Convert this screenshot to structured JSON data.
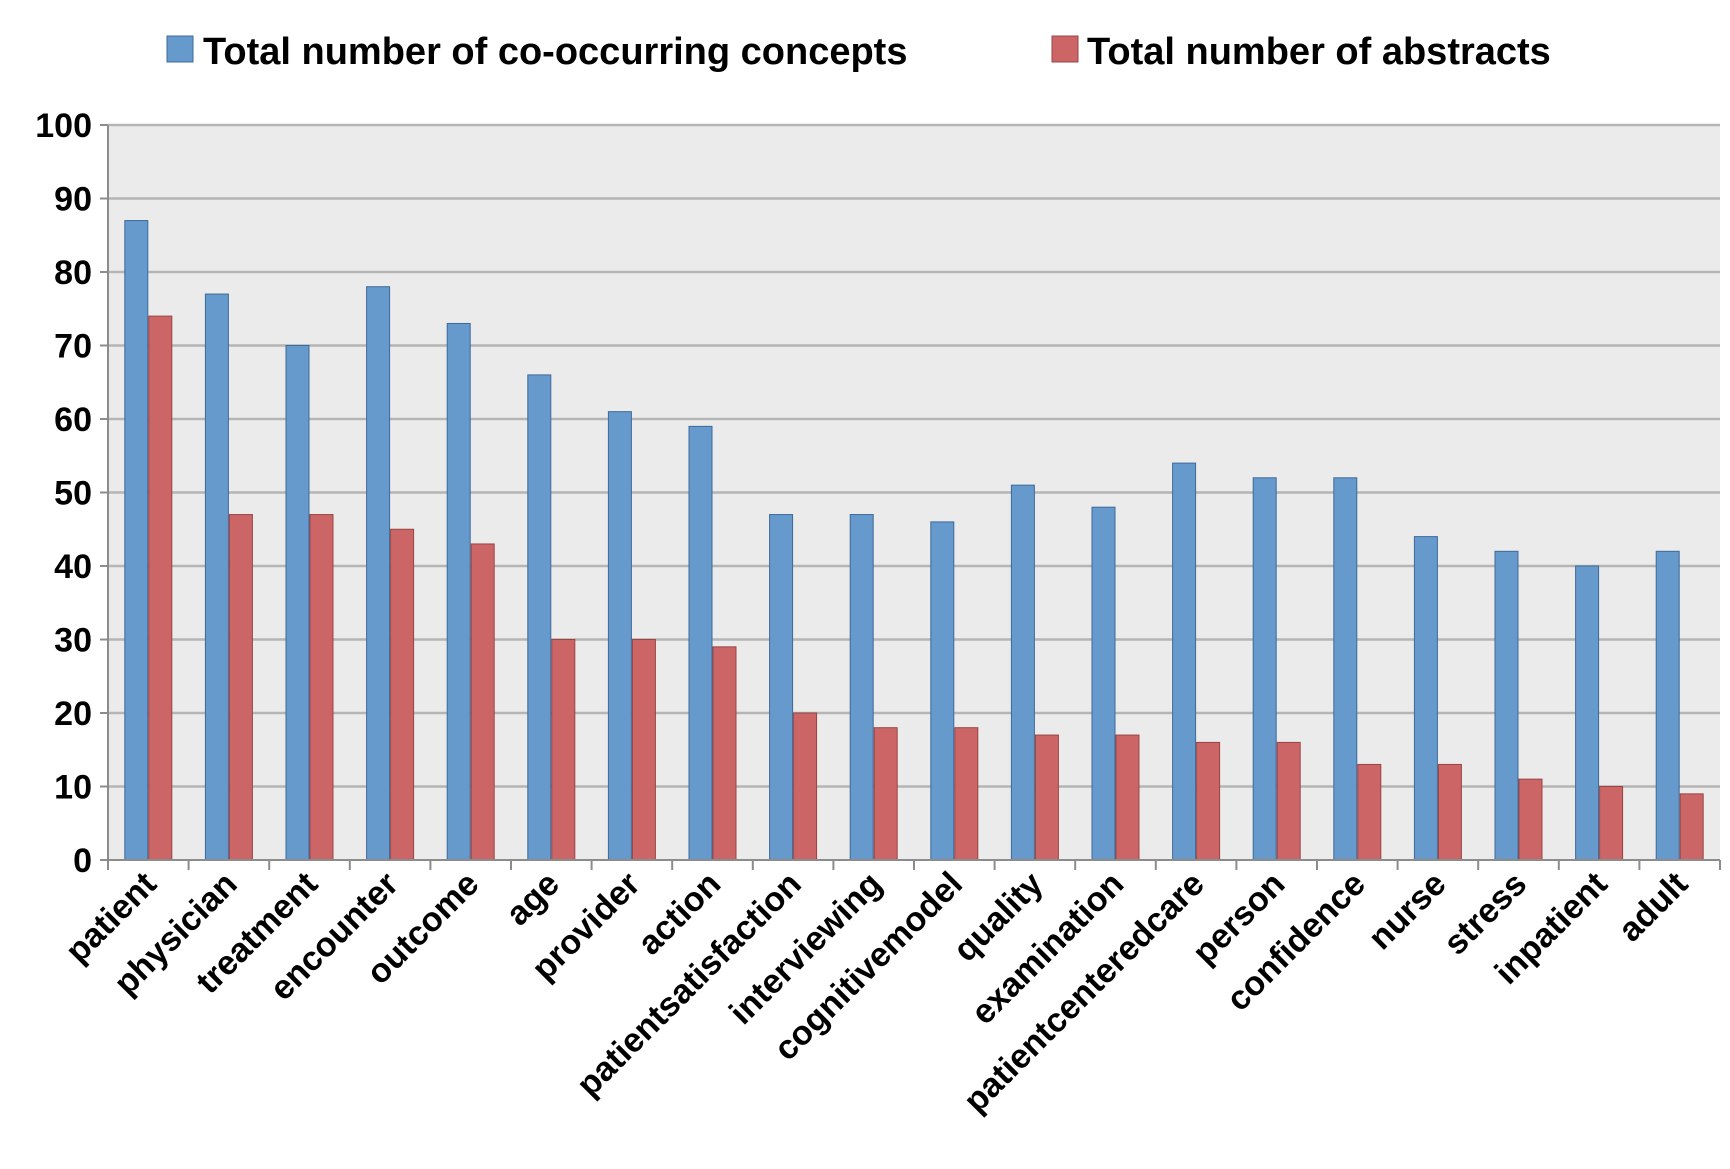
{
  "chart_data": {
    "type": "bar",
    "categories": [
      "patient",
      "physician",
      "treatment",
      "encounter",
      "outcome",
      "age",
      "provider",
      "action",
      "patientsatisfaction",
      "interviewing",
      "cognitivemodel",
      "quality",
      "examination",
      "patientcenteredcare",
      "person",
      "confidence",
      "nurse",
      "stress",
      "inpatient",
      "adult"
    ],
    "series": [
      {
        "name": "Total number of co-occurring concepts",
        "color": "#6699cc",
        "values": [
          87,
          77,
          70,
          78,
          73,
          66,
          61,
          59,
          47,
          47,
          46,
          51,
          48,
          54,
          52,
          52,
          44,
          42,
          40,
          42
        ]
      },
      {
        "name": "Total number of abstracts",
        "color": "#cc6666",
        "values": [
          74,
          47,
          47,
          45,
          43,
          30,
          30,
          29,
          20,
          18,
          18,
          17,
          17,
          16,
          16,
          13,
          13,
          11,
          10,
          9
        ]
      }
    ],
    "title": "",
    "xlabel": "",
    "ylabel": "",
    "ylim": [
      0,
      100
    ],
    "yticks": [
      0,
      10,
      20,
      30,
      40,
      50,
      60,
      70,
      80,
      90,
      100
    ],
    "grid": true,
    "legend": "top",
    "plot_background": "#ebebeb"
  }
}
